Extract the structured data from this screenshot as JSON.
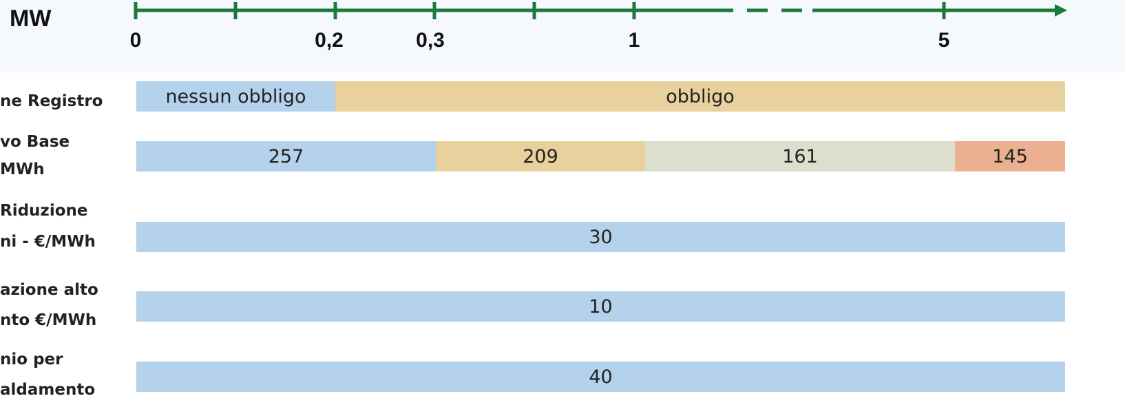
{
  "header": {
    "unit": "MW"
  },
  "axis": {
    "labels": [
      "0",
      "0,2",
      "0,3",
      "1",
      "5"
    ]
  },
  "rows": [
    {
      "label_lines": [
        "ne Registro"
      ],
      "segments": [
        {
          "text": "nessun obbligo"
        },
        {
          "text": "obbligo"
        }
      ]
    },
    {
      "label_lines": [
        "vo Base",
        "MWh"
      ],
      "segments": [
        {
          "text": 257
        },
        {
          "text": 209
        },
        {
          "text": 161
        },
        {
          "text": 145
        }
      ]
    },
    {
      "label_lines": [
        "Riduzione",
        "ni - €/MWh"
      ],
      "segments": [
        {
          "text": 30
        }
      ]
    },
    {
      "label_lines": [
        "azione alto",
        "nto €/MWh"
      ],
      "segments": [
        {
          "text": 10
        }
      ]
    },
    {
      "label_lines": [
        "nio per",
        "aldamento"
      ],
      "segments": [
        {
          "text": 40
        }
      ]
    }
  ]
}
